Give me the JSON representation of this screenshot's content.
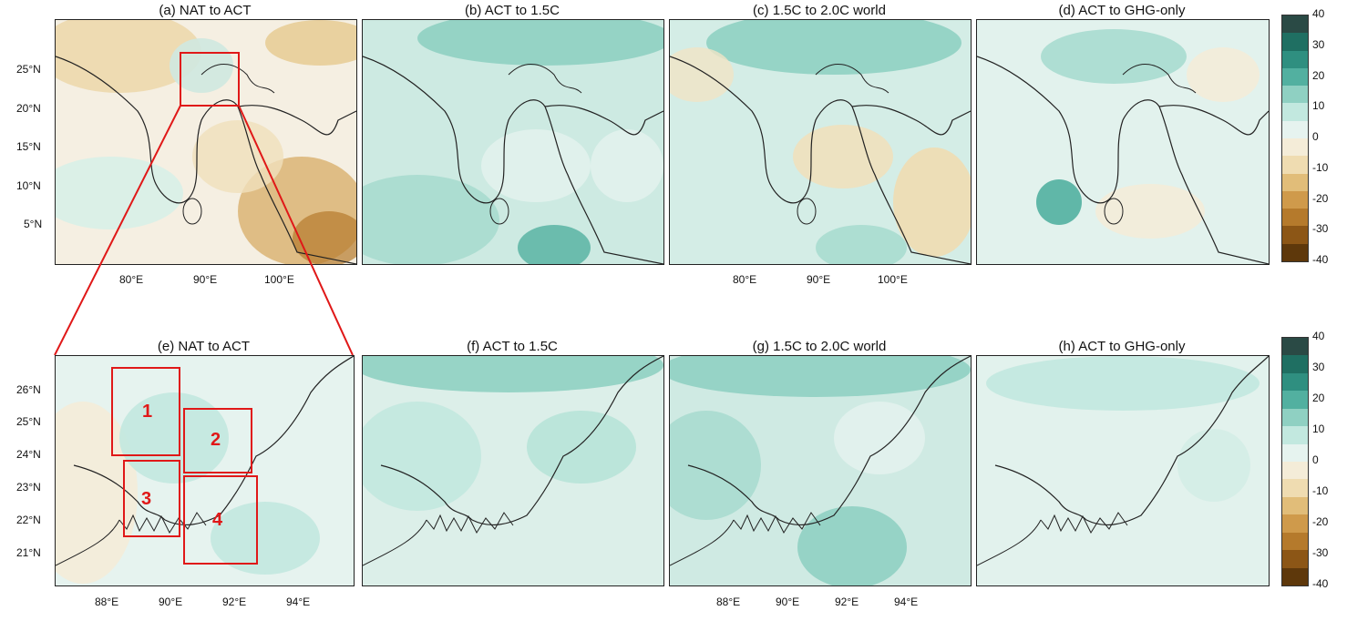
{
  "panels_top": [
    {
      "id": "a",
      "title": "(a) NAT to ACT"
    },
    {
      "id": "b",
      "title": "(b) ACT to 1.5C"
    },
    {
      "id": "c",
      "title": "(c) 1.5C to 2.0C world"
    },
    {
      "id": "d",
      "title": "(d) ACT to GHG-only"
    }
  ],
  "panels_bottom": [
    {
      "id": "e",
      "title": "(e) NAT to ACT"
    },
    {
      "id": "f",
      "title": "(f) ACT to 1.5C"
    },
    {
      "id": "g",
      "title": "(g) 1.5C to 2.0C world"
    },
    {
      "id": "h",
      "title": "(h) ACT to GHG-only"
    }
  ],
  "axes_top": {
    "lat_labels": [
      "25°N",
      "20°N",
      "15°N",
      "10°N",
      "5°N"
    ],
    "lon_labels": [
      "80°E",
      "90°E",
      "100°E"
    ]
  },
  "axes_bottom": {
    "lat_labels": [
      "26°N",
      "25°N",
      "24°N",
      "23°N",
      "22°N",
      "21°N"
    ],
    "lon_labels": [
      "88°E",
      "90°E",
      "92°E",
      "94°E"
    ]
  },
  "colorbar": {
    "labels": [
      "40",
      "30",
      "20",
      "10",
      "0",
      "-10",
      "-20",
      "-30",
      "-40"
    ],
    "colors": [
      "#2a4a45",
      "#1f6f62",
      "#2f8f80",
      "#52b0a0",
      "#8fd0c2",
      "#c2e8df",
      "#e6f3ef",
      "#f4ecd8",
      "#efdcb1",
      "#e1bd79",
      "#cf9a4b",
      "#b57a2c",
      "#8c5616",
      "#5e380b"
    ]
  },
  "regions": [
    {
      "label": "1"
    },
    {
      "label": "2"
    },
    {
      "label": "3"
    },
    {
      "label": "4"
    }
  ]
}
